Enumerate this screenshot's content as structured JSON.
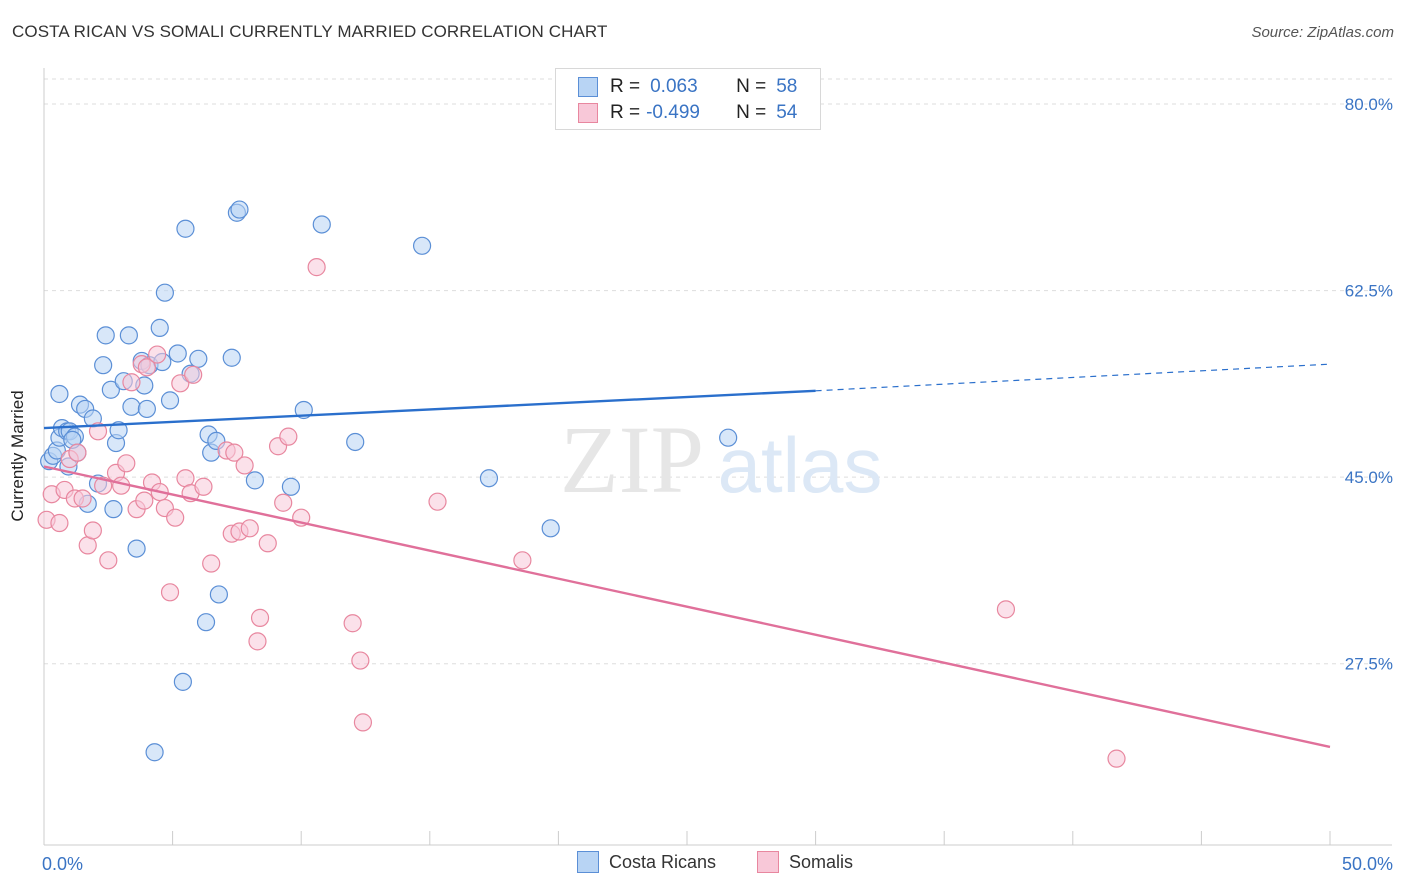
{
  "header": {
    "title": "COSTA RICAN VS SOMALI CURRENTLY MARRIED CORRELATION CHART",
    "source": "Source: ZipAtlas.com"
  },
  "legend_top": {
    "rows": [
      {
        "r_label": "R =",
        "r_value": "0.063",
        "n_label": "N =",
        "n_value": "58"
      },
      {
        "r_label": "R =",
        "r_value": "-0.499",
        "n_label": "N =",
        "n_value": "54"
      }
    ]
  },
  "watermark": {
    "zip": "ZIP",
    "atlas": "atlas"
  },
  "colors": {
    "blue_fill": "#b8d4f4",
    "blue_stroke": "#5b8fd6",
    "blue_line": "#2a6fcc",
    "pink_fill": "#f8c8d8",
    "pink_stroke": "#e8879f",
    "pink_line": "#e0709a",
    "axis_text": "#3a74c4",
    "grid": "#dddddd"
  },
  "chart_data": {
    "type": "scatter",
    "title": "COSTA RICAN VS SOMALI CURRENTLY MARRIED CORRELATION CHART",
    "xlabel": "",
    "ylabel": "Currently Married",
    "xlim": [
      0,
      50
    ],
    "ylim": [
      10.5,
      83
    ],
    "x_tick_labels": [
      "0.0%",
      "50.0%"
    ],
    "y_ticks": [
      27.5,
      45.0,
      62.5,
      80.0
    ],
    "y_tick_labels": [
      "27.5%",
      "45.0%",
      "62.5%",
      "80.0%"
    ],
    "grid": true,
    "legend_position": "bottom",
    "series": [
      {
        "name": "Costa Ricans",
        "color": "#5b8fd6",
        "r": 0.063,
        "n": 58,
        "trend": {
          "x0": 0,
          "y0": 49.6,
          "x1": 30,
          "y1": 53.1,
          "dashed_to_x": 50,
          "dashed_to_y": 55.6
        },
        "points": [
          [
            0.2,
            46.5
          ],
          [
            0.35,
            47.0
          ],
          [
            0.5,
            47.5
          ],
          [
            0.6,
            48.7
          ],
          [
            0.7,
            49.6
          ],
          [
            0.9,
            49.3
          ],
          [
            0.95,
            46.0
          ],
          [
            1.0,
            49.3
          ],
          [
            1.2,
            48.8
          ],
          [
            1.3,
            47.3
          ],
          [
            1.4,
            51.8
          ],
          [
            1.6,
            51.4
          ],
          [
            1.7,
            42.5
          ],
          [
            1.9,
            50.5
          ],
          [
            2.1,
            44.4
          ],
          [
            2.3,
            55.5
          ],
          [
            2.4,
            58.3
          ],
          [
            2.6,
            53.2
          ],
          [
            2.7,
            42.0
          ],
          [
            2.8,
            48.2
          ],
          [
            2.9,
            49.4
          ],
          [
            3.1,
            54.0
          ],
          [
            3.3,
            58.3
          ],
          [
            3.4,
            51.6
          ],
          [
            3.6,
            38.3
          ],
          [
            3.8,
            55.9
          ],
          [
            3.9,
            53.6
          ],
          [
            4.0,
            51.4
          ],
          [
            4.1,
            55.5
          ],
          [
            4.3,
            19.2
          ],
          [
            4.5,
            59.0
          ],
          [
            4.6,
            55.8
          ],
          [
            4.7,
            62.3
          ],
          [
            4.9,
            52.2
          ],
          [
            5.2,
            56.6
          ],
          [
            5.4,
            25.8
          ],
          [
            5.5,
            68.3
          ],
          [
            5.7,
            54.7
          ],
          [
            6.0,
            56.1
          ],
          [
            6.3,
            31.4
          ],
          [
            6.4,
            49.0
          ],
          [
            6.5,
            47.3
          ],
          [
            6.7,
            48.4
          ],
          [
            6.8,
            34.0
          ],
          [
            7.3,
            56.2
          ],
          [
            7.5,
            69.8
          ],
          [
            7.6,
            70.1
          ],
          [
            8.2,
            44.7
          ],
          [
            9.6,
            44.1
          ],
          [
            10.1,
            51.3
          ],
          [
            10.8,
            68.7
          ],
          [
            12.1,
            48.3
          ],
          [
            14.7,
            66.7
          ],
          [
            17.3,
            44.9
          ],
          [
            19.7,
            40.2
          ],
          [
            26.6,
            48.7
          ],
          [
            0.6,
            52.8
          ],
          [
            1.1,
            48.5
          ]
        ]
      },
      {
        "name": "Somalis",
        "color": "#e8879f",
        "r": -0.499,
        "n": 54,
        "trend": {
          "x0": 0,
          "y0": 46.0,
          "x1": 50,
          "y1": 19.7
        },
        "points": [
          [
            0.1,
            41.0
          ],
          [
            0.3,
            43.4
          ],
          [
            0.6,
            40.7
          ],
          [
            0.8,
            43.8
          ],
          [
            1.0,
            46.7
          ],
          [
            1.2,
            43.0
          ],
          [
            1.3,
            47.3
          ],
          [
            1.5,
            43.0
          ],
          [
            1.7,
            38.6
          ],
          [
            1.9,
            40.0
          ],
          [
            2.1,
            49.3
          ],
          [
            2.3,
            44.2
          ],
          [
            2.5,
            37.2
          ],
          [
            2.8,
            45.4
          ],
          [
            3.0,
            44.2
          ],
          [
            3.2,
            46.3
          ],
          [
            3.4,
            53.9
          ],
          [
            3.6,
            42.0
          ],
          [
            3.8,
            55.6
          ],
          [
            3.9,
            42.8
          ],
          [
            4.0,
            55.3
          ],
          [
            4.2,
            44.5
          ],
          [
            4.4,
            56.5
          ],
          [
            4.5,
            43.6
          ],
          [
            4.7,
            42.1
          ],
          [
            4.9,
            34.2
          ],
          [
            5.1,
            41.2
          ],
          [
            5.3,
            53.8
          ],
          [
            5.5,
            44.9
          ],
          [
            5.7,
            43.5
          ],
          [
            5.8,
            54.6
          ],
          [
            6.2,
            44.1
          ],
          [
            6.5,
            36.9
          ],
          [
            7.1,
            47.5
          ],
          [
            7.3,
            39.7
          ],
          [
            7.4,
            47.3
          ],
          [
            7.6,
            39.9
          ],
          [
            7.8,
            46.1
          ],
          [
            8.0,
            40.2
          ],
          [
            8.3,
            29.6
          ],
          [
            8.4,
            31.8
          ],
          [
            8.7,
            38.8
          ],
          [
            9.1,
            47.9
          ],
          [
            9.3,
            42.6
          ],
          [
            9.5,
            48.8
          ],
          [
            10.0,
            41.2
          ],
          [
            10.6,
            64.7
          ],
          [
            12.0,
            31.3
          ],
          [
            12.3,
            27.8
          ],
          [
            12.4,
            22.0
          ],
          [
            15.3,
            42.7
          ],
          [
            18.6,
            37.2
          ],
          [
            37.4,
            32.6
          ],
          [
            41.7,
            18.6
          ]
        ]
      }
    ]
  },
  "bottom_legend": {
    "items": [
      {
        "label": "Costa Ricans"
      },
      {
        "label": "Somalis"
      }
    ]
  }
}
